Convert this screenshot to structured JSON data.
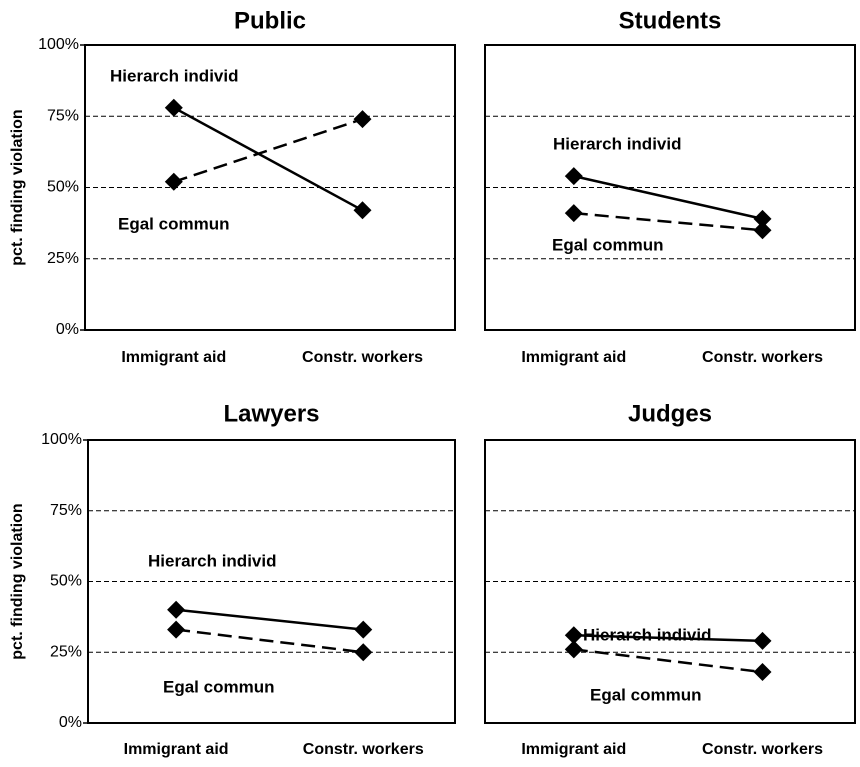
{
  "chart_data": [
    {
      "type": "line",
      "title": "Public",
      "ylabel": "pct. finding violation",
      "categories": [
        "Immigrant aid",
        "Constr. workers"
      ],
      "series": [
        {
          "name": "Hierarch individ",
          "color": "#000000",
          "dash": "solid",
          "values": [
            78,
            42
          ]
        },
        {
          "name": "Egal commun",
          "color": "#000000",
          "dash": "dashed",
          "values": [
            52,
            74
          ]
        }
      ],
      "ylim": [
        0,
        100
      ],
      "yticks": [
        {
          "value": 0,
          "label": "0%"
        },
        {
          "value": 25,
          "label": "25%"
        },
        {
          "value": 50,
          "label": "50%"
        },
        {
          "value": 75,
          "label": "75%"
        },
        {
          "value": 100,
          "label": "100%"
        }
      ],
      "grid": true
    },
    {
      "type": "line",
      "title": "Students",
      "categories": [
        "Immigrant aid",
        "Constr. workers"
      ],
      "series": [
        {
          "name": "Hierarch individ",
          "color": "#000000",
          "dash": "solid",
          "values": [
            54,
            39
          ]
        },
        {
          "name": "Egal commun",
          "color": "#000000",
          "dash": "dashed",
          "values": [
            41,
            35
          ]
        }
      ],
      "ylim": [
        0,
        100
      ],
      "yticks": [
        25,
        50,
        75
      ],
      "tick_labels": false,
      "grid": true
    },
    {
      "type": "line",
      "title": "Lawyers",
      "ylabel": "pct. finding violation",
      "categories": [
        "Immigrant aid",
        "Constr. workers"
      ],
      "series": [
        {
          "name": "Hierarch individ",
          "color": "#000000",
          "dash": "solid",
          "values": [
            40,
            33
          ]
        },
        {
          "name": "Egal commun",
          "color": "#000000",
          "dash": "dashed",
          "values": [
            33,
            25
          ]
        }
      ],
      "ylim": [
        0,
        100
      ],
      "yticks": [
        {
          "value": 0,
          "label": "0%"
        },
        {
          "value": 25,
          "label": "25%"
        },
        {
          "value": 50,
          "label": "50%"
        },
        {
          "value": 75,
          "label": "75%"
        },
        {
          "value": 100,
          "label": "100%"
        }
      ],
      "grid": true
    },
    {
      "type": "line",
      "title": "Judges",
      "categories": [
        "Immigrant aid",
        "Constr. workers"
      ],
      "series": [
        {
          "name": "Hierarch individ",
          "color": "#000000",
          "dash": "solid",
          "values": [
            31,
            29
          ]
        },
        {
          "name": "Egal commun",
          "color": "#000000",
          "dash": "dashed",
          "values": [
            26,
            18
          ]
        }
      ],
      "ylim": [
        0,
        100
      ],
      "yticks": [
        25,
        50,
        75
      ],
      "tick_labels": false,
      "grid": true
    }
  ]
}
